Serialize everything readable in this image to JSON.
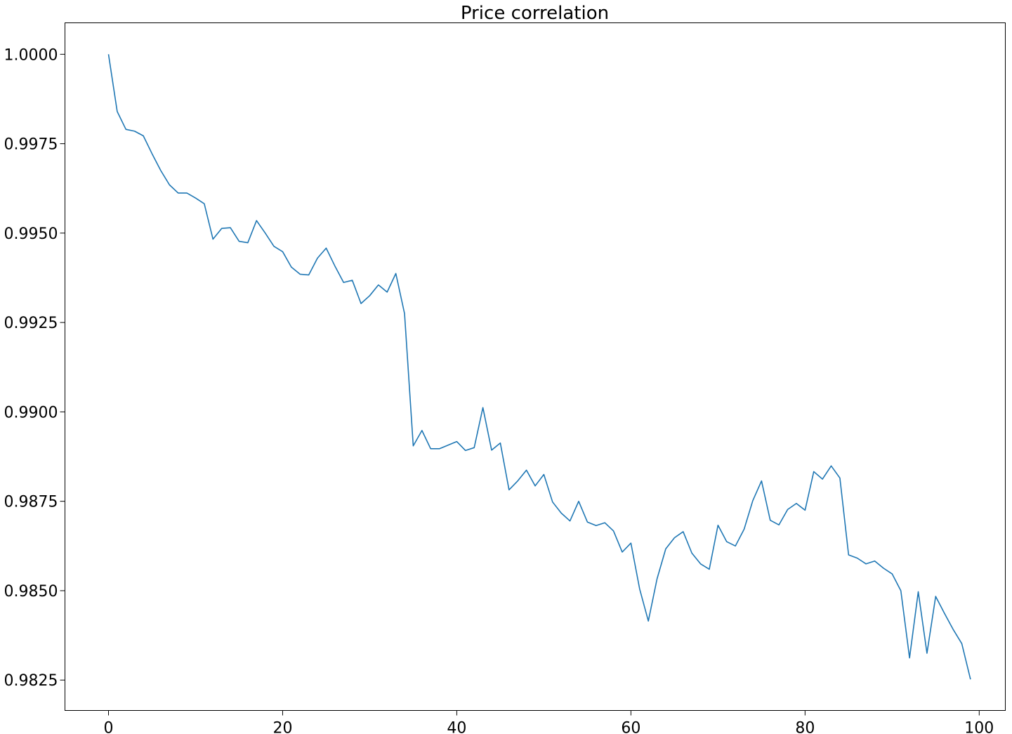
{
  "chart_data": {
    "type": "line",
    "title": "Price correlation",
    "xlabel": "",
    "ylabel": "",
    "xlim": [
      -5,
      103
    ],
    "ylim": [
      0.98165,
      1.00088
    ],
    "xticks": [
      0,
      20,
      40,
      60,
      80,
      100
    ],
    "xtick_labels": [
      "0",
      "20",
      "40",
      "60",
      "80",
      "100"
    ],
    "yticks": [
      0.9825,
      0.985,
      0.9875,
      0.99,
      0.9925,
      0.995,
      0.9975,
      1.0
    ],
    "ytick_labels": [
      "0.9825",
      "0.9850",
      "0.9875",
      "0.9900",
      "0.9925",
      "0.9950",
      "0.9975",
      "1.0000"
    ],
    "grid": false,
    "legend": "none",
    "colors": {
      "line": "#1f77b4",
      "axes": "#000000",
      "background": "#ffffff"
    },
    "series": [
      {
        "x": [
          0,
          1,
          2,
          3,
          4,
          5,
          6,
          7,
          8,
          9,
          10,
          11,
          12,
          13,
          14,
          15,
          16,
          17,
          18,
          19,
          20,
          21,
          22,
          23,
          24,
          25,
          26,
          27,
          28,
          29,
          30,
          31,
          32,
          33,
          34,
          35,
          36,
          37,
          38,
          39,
          40,
          41,
          42,
          43,
          44,
          45,
          46,
          47,
          48,
          49,
          50,
          51,
          52,
          53,
          54,
          55,
          56,
          57,
          58,
          59,
          60,
          61,
          62,
          63,
          64,
          65,
          66,
          67,
          68,
          69,
          70,
          71,
          72,
          73,
          74,
          75,
          76,
          77,
          78,
          79,
          80,
          81,
          82,
          83,
          84,
          85,
          86,
          87,
          88,
          89,
          90,
          91,
          92,
          93,
          94,
          95,
          96,
          97,
          98,
          99
        ],
        "values": [
          1.0,
          0.9984,
          0.9979,
          0.99785,
          0.99772,
          0.99722,
          0.99675,
          0.99635,
          0.99612,
          0.99612,
          0.99598,
          0.99582,
          0.99483,
          0.99513,
          0.99515,
          0.99477,
          0.99473,
          0.99535,
          0.995,
          0.99463,
          0.99448,
          0.99405,
          0.99385,
          0.99383,
          0.9943,
          0.99458,
          0.99408,
          0.99362,
          0.99368,
          0.99303,
          0.99325,
          0.99355,
          0.99335,
          0.99387,
          0.99275,
          0.98905,
          0.98948,
          0.98897,
          0.98897,
          0.98907,
          0.98917,
          0.98892,
          0.989,
          0.99012,
          0.98893,
          0.98913,
          0.98782,
          0.98807,
          0.98837,
          0.98793,
          0.98825,
          0.98748,
          0.98717,
          0.98695,
          0.9875,
          0.98692,
          0.98682,
          0.9869,
          0.98667,
          0.98608,
          0.98633,
          0.98505,
          0.98415,
          0.98533,
          0.98617,
          0.98648,
          0.98665,
          0.98605,
          0.98575,
          0.9856,
          0.98683,
          0.98637,
          0.98625,
          0.98672,
          0.98752,
          0.98807,
          0.98697,
          0.98684,
          0.98727,
          0.98744,
          0.98725,
          0.98833,
          0.98812,
          0.98849,
          0.98815,
          0.986,
          0.98591,
          0.98575,
          0.98583,
          0.98563,
          0.98547,
          0.985,
          0.98312,
          0.98497,
          0.98325,
          0.98484,
          0.98437,
          0.98392,
          0.98352,
          0.98252
        ]
      }
    ]
  }
}
